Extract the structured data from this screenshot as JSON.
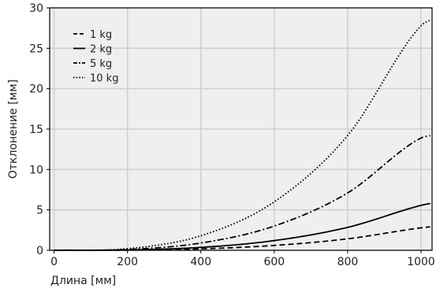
{
  "chart_data": {
    "type": "line",
    "title": "",
    "xlabel": "Длина [мм]",
    "ylabel": "Отклонение [мм]",
    "xlim": [
      -12,
      1030
    ],
    "ylim": [
      0,
      30
    ],
    "x_ticks": [
      0,
      200,
      400,
      600,
      800,
      1000
    ],
    "y_ticks": [
      0,
      5,
      10,
      15,
      20,
      25,
      30
    ],
    "x_tick_labels": [
      "0",
      "200",
      "400",
      "600",
      "800",
      "1000"
    ],
    "y_tick_labels": [
      "0",
      "5",
      "10",
      "15",
      "20",
      "25",
      "30"
    ],
    "grid": true,
    "legend_position": "top-left",
    "colors": {
      "plot_background": "#efefef",
      "grid": "#d0d0d0",
      "line": "#000000"
    },
    "series": [
      {
        "name": "1 kg",
        "dash": "dashed",
        "x": [
          0,
          200,
          400,
          600,
          800,
          1000,
          1025
        ],
        "y": [
          0,
          0.02,
          0.18,
          0.6,
          1.42,
          2.78,
          2.9
        ]
      },
      {
        "name": "2 kg",
        "dash": "solid",
        "x": [
          0,
          200,
          400,
          600,
          800,
          1000,
          1025
        ],
        "y": [
          0,
          0.04,
          0.36,
          1.2,
          2.84,
          5.56,
          5.8
        ]
      },
      {
        "name": "5 kg",
        "dash": "dash-dot",
        "x": [
          0,
          200,
          400,
          600,
          800,
          1000,
          1025
        ],
        "y": [
          0,
          0.1,
          0.9,
          3.0,
          7.1,
          13.9,
          14.2
        ]
      },
      {
        "name": "10 kg",
        "dash": "dotted",
        "x": [
          0,
          200,
          400,
          600,
          800,
          1000,
          1025
        ],
        "y": [
          0,
          0.2,
          1.8,
          6.0,
          14.2,
          27.8,
          28.5
        ]
      }
    ]
  }
}
